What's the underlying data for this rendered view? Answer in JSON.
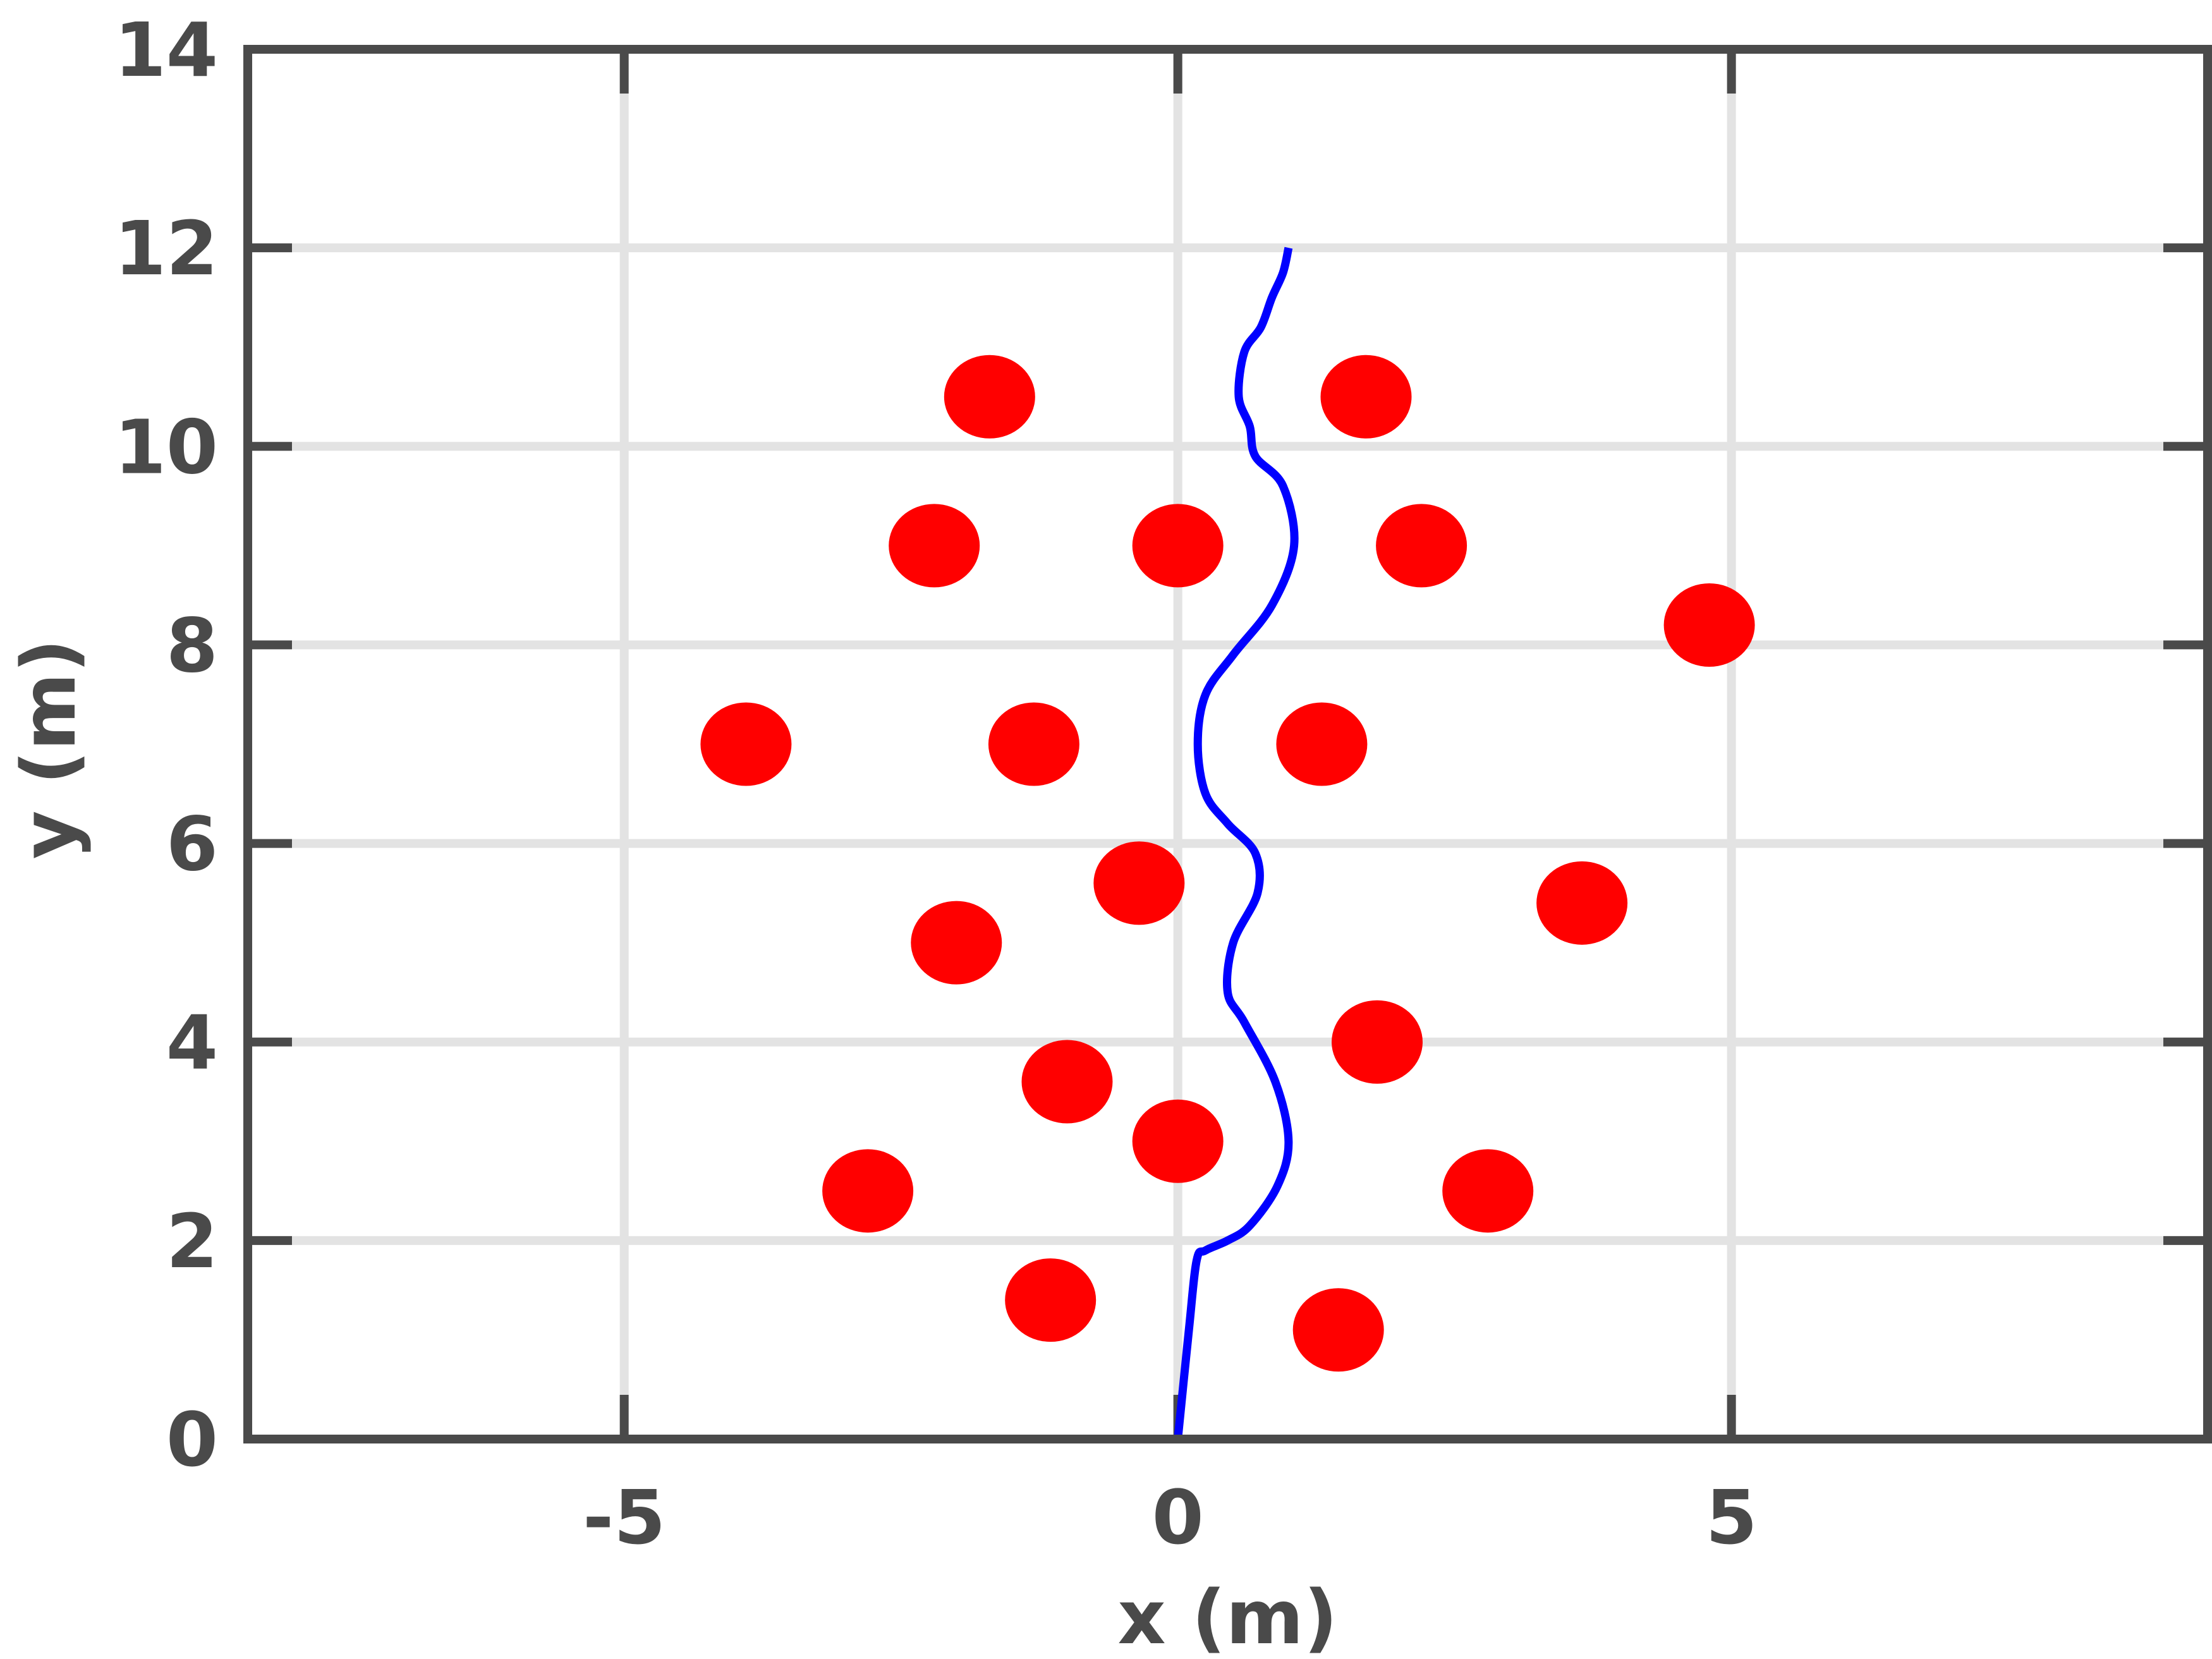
{
  "chart_data": {
    "type": "scatter",
    "xlabel": "x (m)",
    "ylabel": "y (m)",
    "xlim": [
      -8.4,
      9.3
    ],
    "ylim": [
      0,
      14
    ],
    "x_ticks": [
      -5,
      0,
      5
    ],
    "y_ticks": [
      0,
      2,
      4,
      6,
      8,
      10,
      12,
      14
    ],
    "grid": true,
    "colors": {
      "points": "#ff0000",
      "path": "#0000ff",
      "frame": "#4a4a4a",
      "grid": "#e3e3e3"
    },
    "obstacles": [
      {
        "x": -1.7,
        "y": 10.5
      },
      {
        "x": 1.7,
        "y": 10.5
      },
      {
        "x": -2.2,
        "y": 9.0
      },
      {
        "x": 0.0,
        "y": 9.0
      },
      {
        "x": 2.2,
        "y": 9.0
      },
      {
        "x": 4.8,
        "y": 8.2
      },
      {
        "x": -3.9,
        "y": 7.0
      },
      {
        "x": -1.3,
        "y": 7.0
      },
      {
        "x": 1.3,
        "y": 7.0
      },
      {
        "x": -0.35,
        "y": 5.6
      },
      {
        "x": 3.65,
        "y": 5.4
      },
      {
        "x": -2.0,
        "y": 5.0
      },
      {
        "x": 1.8,
        "y": 4.0
      },
      {
        "x": -1.0,
        "y": 3.6
      },
      {
        "x": 0.0,
        "y": 3.0
      },
      {
        "x": -2.8,
        "y": 2.5
      },
      {
        "x": 2.8,
        "y": 2.5
      },
      {
        "x": -1.15,
        "y": 1.4
      },
      {
        "x": 1.45,
        "y": 1.1
      }
    ],
    "path": [
      {
        "x": 0.0,
        "y": 0.0
      },
      {
        "x": 0.1,
        "y": 1.1
      },
      {
        "x": 0.17,
        "y": 1.8
      },
      {
        "x": 0.25,
        "y": 1.9
      },
      {
        "x": 0.45,
        "y": 2.0
      },
      {
        "x": 0.65,
        "y": 2.15
      },
      {
        "x": 0.9,
        "y": 2.55
      },
      {
        "x": 1.0,
        "y": 3.0
      },
      {
        "x": 0.88,
        "y": 3.6
      },
      {
        "x": 0.6,
        "y": 4.2
      },
      {
        "x": 0.45,
        "y": 4.5
      },
      {
        "x": 0.5,
        "y": 5.0
      },
      {
        "x": 0.72,
        "y": 5.5
      },
      {
        "x": 0.7,
        "y": 5.9
      },
      {
        "x": 0.45,
        "y": 6.2
      },
      {
        "x": 0.25,
        "y": 6.5
      },
      {
        "x": 0.18,
        "y": 7.0
      },
      {
        "x": 0.25,
        "y": 7.5
      },
      {
        "x": 0.5,
        "y": 7.9
      },
      {
        "x": 0.85,
        "y": 8.4
      },
      {
        "x": 1.05,
        "y": 9.0
      },
      {
        "x": 0.95,
        "y": 9.6
      },
      {
        "x": 0.7,
        "y": 9.9
      },
      {
        "x": 0.65,
        "y": 10.2
      },
      {
        "x": 0.55,
        "y": 10.5
      },
      {
        "x": 0.6,
        "y": 10.95
      },
      {
        "x": 0.75,
        "y": 11.2
      },
      {
        "x": 0.85,
        "y": 11.5
      },
      {
        "x": 0.95,
        "y": 11.75
      },
      {
        "x": 1.0,
        "y": 12.0
      }
    ]
  }
}
